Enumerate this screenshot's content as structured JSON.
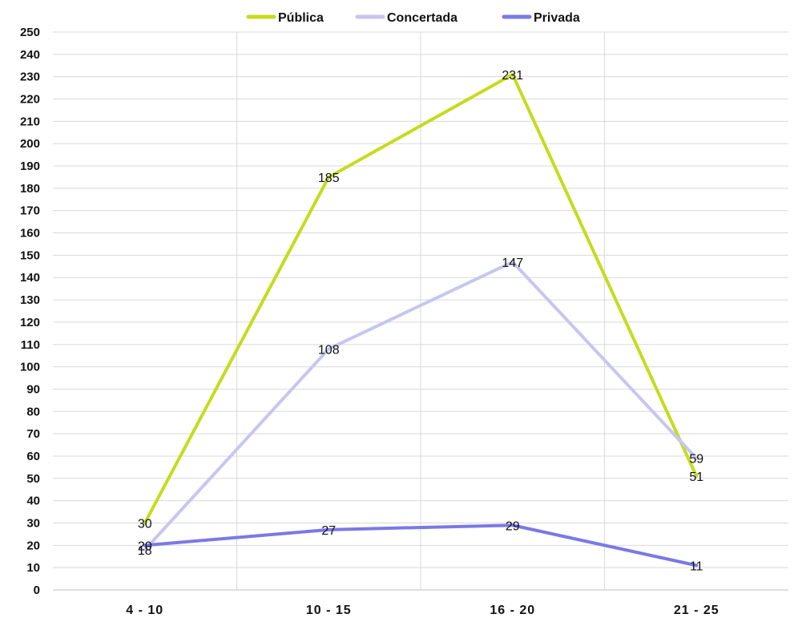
{
  "chart_data": {
    "type": "line",
    "categories": [
      "4 - 10",
      "10 - 15",
      "16 - 20",
      "21 - 25"
    ],
    "series": [
      {
        "name": "Pública",
        "values": [
          30,
          185,
          231,
          51
        ],
        "color": "#c4dc1e"
      },
      {
        "name": "Concertada",
        "values": [
          18,
          108,
          147,
          59
        ],
        "color": "#c7c6f0"
      },
      {
        "name": "Privada",
        "values": [
          20,
          27,
          29,
          11
        ],
        "color": "#7b79e6"
      }
    ],
    "ylim": [
      0,
      250
    ],
    "ytick_step": 10,
    "grid": true,
    "legend_position": "top-center"
  }
}
